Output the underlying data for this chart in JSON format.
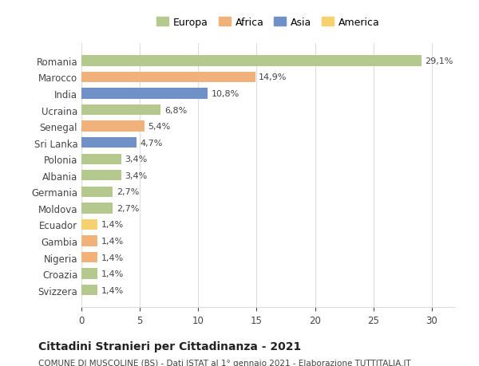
{
  "countries": [
    "Romania",
    "Marocco",
    "India",
    "Ucraina",
    "Senegal",
    "Sri Lanka",
    "Polonia",
    "Albania",
    "Germania",
    "Moldova",
    "Ecuador",
    "Gambia",
    "Nigeria",
    "Croazia",
    "Svizzera"
  ],
  "values": [
    29.1,
    14.9,
    10.8,
    6.8,
    5.4,
    4.7,
    3.4,
    3.4,
    2.7,
    2.7,
    1.4,
    1.4,
    1.4,
    1.4,
    1.4
  ],
  "labels": [
    "29,1%",
    "14,9%",
    "10,8%",
    "6,8%",
    "5,4%",
    "4,7%",
    "3,4%",
    "3,4%",
    "2,7%",
    "2,7%",
    "1,4%",
    "1,4%",
    "1,4%",
    "1,4%",
    "1,4%"
  ],
  "continents": [
    "Europa",
    "Africa",
    "Asia",
    "Europa",
    "Africa",
    "Asia",
    "Europa",
    "Europa",
    "Europa",
    "Europa",
    "America",
    "Africa",
    "Africa",
    "Europa",
    "Europa"
  ],
  "continent_colors": {
    "Europa": "#b5c98e",
    "Africa": "#f0b27a",
    "Asia": "#7090c8",
    "America": "#f7d070"
  },
  "legend_order": [
    "Europa",
    "Africa",
    "Asia",
    "America"
  ],
  "title": "Cittadini Stranieri per Cittadinanza - 2021",
  "subtitle": "COMUNE DI MUSCOLINE (BS) - Dati ISTAT al 1° gennaio 2021 - Elaborazione TUTTITALIA.IT",
  "xlim": [
    0,
    32
  ],
  "xticks": [
    0,
    5,
    10,
    15,
    20,
    25,
    30
  ],
  "background_color": "#ffffff",
  "grid_color": "#dddddd"
}
